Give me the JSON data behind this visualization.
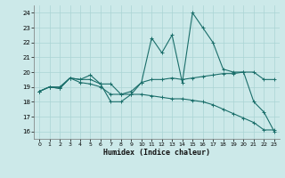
{
  "xlabel": "Humidex (Indice chaleur)",
  "xlim": [
    -0.5,
    23.5
  ],
  "ylim": [
    15.5,
    24.5
  ],
  "yticks": [
    16,
    17,
    18,
    19,
    20,
    21,
    22,
    23,
    24
  ],
  "xticks": [
    0,
    1,
    2,
    3,
    4,
    5,
    6,
    7,
    8,
    9,
    10,
    11,
    12,
    13,
    14,
    15,
    16,
    17,
    18,
    19,
    20,
    21,
    22,
    23
  ],
  "bg_color": "#cce9e9",
  "grid_color": "#aad4d4",
  "line_color": "#1a6e6a",
  "line1_x": [
    0,
    1,
    2,
    3,
    4,
    5,
    6,
    7,
    8,
    9,
    10,
    11,
    12,
    13,
    14,
    15,
    16,
    17,
    18,
    19,
    20,
    21,
    22,
    23
  ],
  "line1_y": [
    18.7,
    19.0,
    19.0,
    19.6,
    19.5,
    19.8,
    19.2,
    18.0,
    18.0,
    18.5,
    19.3,
    22.3,
    21.3,
    22.5,
    19.3,
    24.0,
    23.0,
    22.0,
    20.2,
    20.0,
    20.0,
    18.0,
    17.3,
    16.0
  ],
  "line2_x": [
    0,
    1,
    2,
    3,
    4,
    5,
    6,
    7,
    8,
    9,
    10,
    11,
    12,
    13,
    14,
    15,
    16,
    17,
    18,
    19,
    20,
    21,
    22,
    23
  ],
  "line2_y": [
    18.7,
    19.0,
    18.9,
    19.6,
    19.5,
    19.5,
    19.2,
    19.2,
    18.5,
    18.7,
    19.3,
    19.5,
    19.5,
    19.6,
    19.5,
    19.6,
    19.7,
    19.8,
    19.9,
    19.9,
    20.0,
    20.0,
    19.5,
    19.5
  ],
  "line3_x": [
    0,
    1,
    2,
    3,
    4,
    5,
    6,
    7,
    8,
    9,
    10,
    11,
    12,
    13,
    14,
    15,
    16,
    17,
    18,
    19,
    20,
    21,
    22,
    23
  ],
  "line3_y": [
    18.7,
    19.0,
    18.9,
    19.6,
    19.3,
    19.2,
    19.0,
    18.5,
    18.5,
    18.5,
    18.5,
    18.4,
    18.3,
    18.2,
    18.2,
    18.1,
    18.0,
    17.8,
    17.5,
    17.2,
    16.9,
    16.6,
    16.1,
    16.1
  ]
}
